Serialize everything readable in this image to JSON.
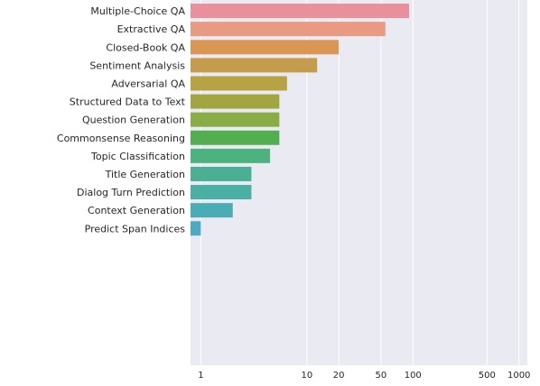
{
  "chart_data": {
    "type": "bar",
    "orientation": "horizontal",
    "x_scale": "log",
    "xlim": [
      0.8,
      1200
    ],
    "title": "",
    "xlabel": "",
    "ylabel": "",
    "grid": true,
    "background_color": "#eaeaf2",
    "categories": [
      "Multiple-Choice QA",
      "Extractive QA",
      "Closed-Book QA",
      "Sentiment Analysis",
      "Adversarial QA",
      "Structured Data to Text",
      "Question Generation",
      "Commonsense Reasoning",
      "Topic Classification",
      "Title Generation",
      "Dialog Turn Prediction",
      "Context Generation",
      "Predict Span Indices"
    ],
    "values": [
      92,
      55,
      20,
      12.5,
      6.5,
      5.5,
      5.5,
      5.5,
      4.5,
      3,
      3,
      2,
      1
    ],
    "colors": [
      "#e8909c",
      "#e99a82",
      "#d99654",
      "#c59c4c",
      "#b7a344",
      "#a1a641",
      "#8aac44",
      "#52ae4f",
      "#4cb27f",
      "#49b093",
      "#4aafa5",
      "#4aadb5",
      "#4caac5"
    ],
    "xticks": [
      {
        "value": 1,
        "label": "1"
      },
      {
        "value": 10,
        "label": "10"
      },
      {
        "value": 20,
        "label": "20"
      },
      {
        "value": 50,
        "label": "50"
      },
      {
        "value": 100,
        "label": "100"
      },
      {
        "value": 500,
        "label": "500"
      },
      {
        "value": 1000,
        "label": "1000"
      }
    ]
  }
}
